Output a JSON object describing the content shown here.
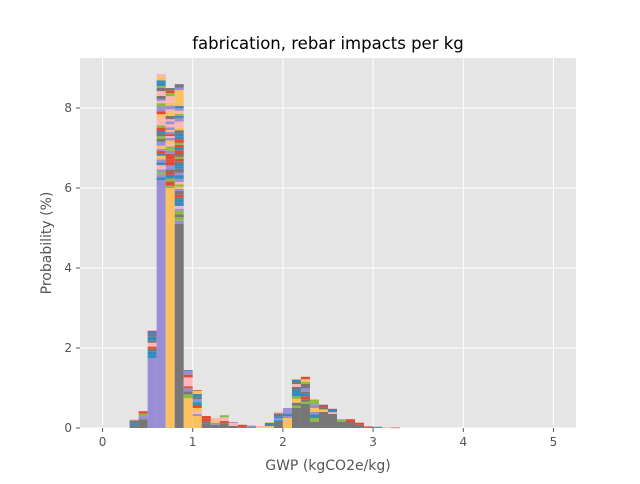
{
  "chart_data": {
    "type": "bar",
    "title": "fabrication, rebar impacts per kg",
    "xlabel": "GWP (kgCO2e/kg)",
    "ylabel": "Probability (%)",
    "xlim": [
      -0.25,
      5.25
    ],
    "ylim": [
      0,
      9.25
    ],
    "xticks": [
      0,
      1,
      2,
      3,
      4,
      5
    ],
    "yticks": [
      0,
      2,
      4,
      6,
      8
    ],
    "bin_width": 0.1,
    "stacked": true,
    "grid": true,
    "legend": "none",
    "style": "ggplot",
    "series_colors": [
      "#E24A33",
      "#348ABD",
      "#988ED5",
      "#777777",
      "#FBC15E",
      "#8EBA42",
      "#FFB5B8"
    ],
    "dominant_series_colors": {
      "purple": "#988ED5",
      "yellow": "#FBC15E",
      "gray": "#777777"
    },
    "bins": [
      {
        "x": 0.35,
        "base": 0.0,
        "top": 0.22,
        "base_color": "#777777"
      },
      {
        "x": 0.45,
        "base": 0.22,
        "top": 0.42,
        "base_color": "#777777"
      },
      {
        "x": 0.55,
        "base": 1.75,
        "top": 2.45,
        "base_color": "#988ED5"
      },
      {
        "x": 0.65,
        "base": 6.2,
        "top": 8.85,
        "base_color": "#988ED5"
      },
      {
        "x": 0.75,
        "base": 6.0,
        "top": 8.5,
        "base_color": "#FBC15E"
      },
      {
        "x": 0.85,
        "base": 5.1,
        "top": 8.6,
        "base_color": "#777777"
      },
      {
        "x": 0.95,
        "base": 0.75,
        "top": 1.45,
        "base_color": "#FBC15E"
      },
      {
        "x": 1.05,
        "base": 0.3,
        "top": 0.95,
        "base_color": "#FBC15E"
      },
      {
        "x": 1.15,
        "base": 0.12,
        "top": 0.3,
        "base_color": "#777777"
      },
      {
        "x": 1.25,
        "base": 0.08,
        "top": 0.25,
        "base_color": "#777777"
      },
      {
        "x": 1.35,
        "base": 0.12,
        "top": 0.32,
        "base_color": "#777777"
      },
      {
        "x": 1.45,
        "base": 0.05,
        "top": 0.15,
        "base_color": "#777777"
      },
      {
        "x": 1.55,
        "base": 0.02,
        "top": 0.08,
        "base_color": "#777777"
      },
      {
        "x": 1.65,
        "base": 0.02,
        "top": 0.06,
        "base_color": "#777777"
      },
      {
        "x": 1.75,
        "base": 0.02,
        "top": 0.05,
        "base_color": "#FBC15E"
      },
      {
        "x": 1.85,
        "base": 0.05,
        "top": 0.15,
        "base_color": "#FBC15E"
      },
      {
        "x": 1.95,
        "base": 0.15,
        "top": 0.4,
        "base_color": "#777777"
      },
      {
        "x": 2.05,
        "base": 0.25,
        "top": 0.5,
        "base_color": "#FBC15E"
      },
      {
        "x": 2.15,
        "base": 0.5,
        "top": 1.22,
        "base_color": "#777777"
      },
      {
        "x": 2.25,
        "base": 0.6,
        "top": 1.28,
        "base_color": "#777777"
      },
      {
        "x": 2.35,
        "base": 0.15,
        "top": 0.72,
        "base_color": "#777777"
      },
      {
        "x": 2.45,
        "base": 0.4,
        "top": 0.58,
        "base_color": "#777777"
      },
      {
        "x": 2.55,
        "base": 0.35,
        "top": 0.5,
        "base_color": "#777777"
      },
      {
        "x": 2.65,
        "base": 0.15,
        "top": 0.22,
        "base_color": "#777777"
      },
      {
        "x": 2.75,
        "base": 0.15,
        "top": 0.22,
        "base_color": "#777777"
      },
      {
        "x": 2.85,
        "base": 0.08,
        "top": 0.15,
        "base_color": "#777777"
      },
      {
        "x": 2.95,
        "base": 0.01,
        "top": 0.04,
        "base_color": "#777777"
      },
      {
        "x": 3.05,
        "base": 0.01,
        "top": 0.03,
        "base_color": "#777777"
      },
      {
        "x": 3.15,
        "base": 0.0,
        "top": 0.02,
        "base_color": "#FBC15E"
      },
      {
        "x": 3.25,
        "base": 0.0,
        "top": 0.01,
        "base_color": "#FBC15E"
      }
    ]
  }
}
